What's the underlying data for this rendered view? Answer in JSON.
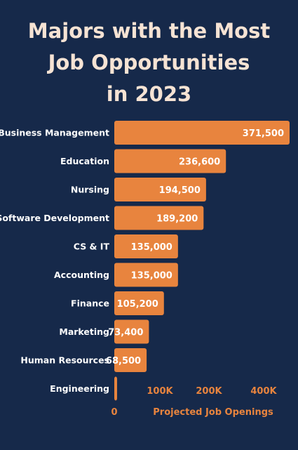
{
  "chart_data": {
    "type": "bar",
    "orientation": "horizontal",
    "title_lines": [
      "Majors with the Most",
      "Job Opportunities",
      "in 2023"
    ],
    "categories": [
      "Business Management",
      "Education",
      "Nursing",
      "Software Development",
      "CS & IT",
      "Accounting",
      "Finance",
      "Marketing",
      "Human Resources",
      "Engineering"
    ],
    "values": [
      371500,
      236600,
      194500,
      189200,
      135000,
      135000,
      105200,
      73400,
      68500,
      3000
    ],
    "value_labels": [
      "371,500",
      "236,600",
      "194,500",
      "189,200",
      "135,000",
      "135,000",
      "105,200",
      "73,400",
      "68,500",
      ""
    ],
    "x_ticks": [
      "0",
      "100K",
      "200K",
      "400K"
    ],
    "xlabel": "Projected Job Openings",
    "ylabel": "",
    "xlim": [
      0,
      371500
    ],
    "grid": false,
    "legend": "none",
    "colors": {
      "background": "#16294a",
      "bar": "#e8843e",
      "title": "#f6e3d4",
      "label": "#ffffff",
      "axis": "#e8843e"
    }
  }
}
